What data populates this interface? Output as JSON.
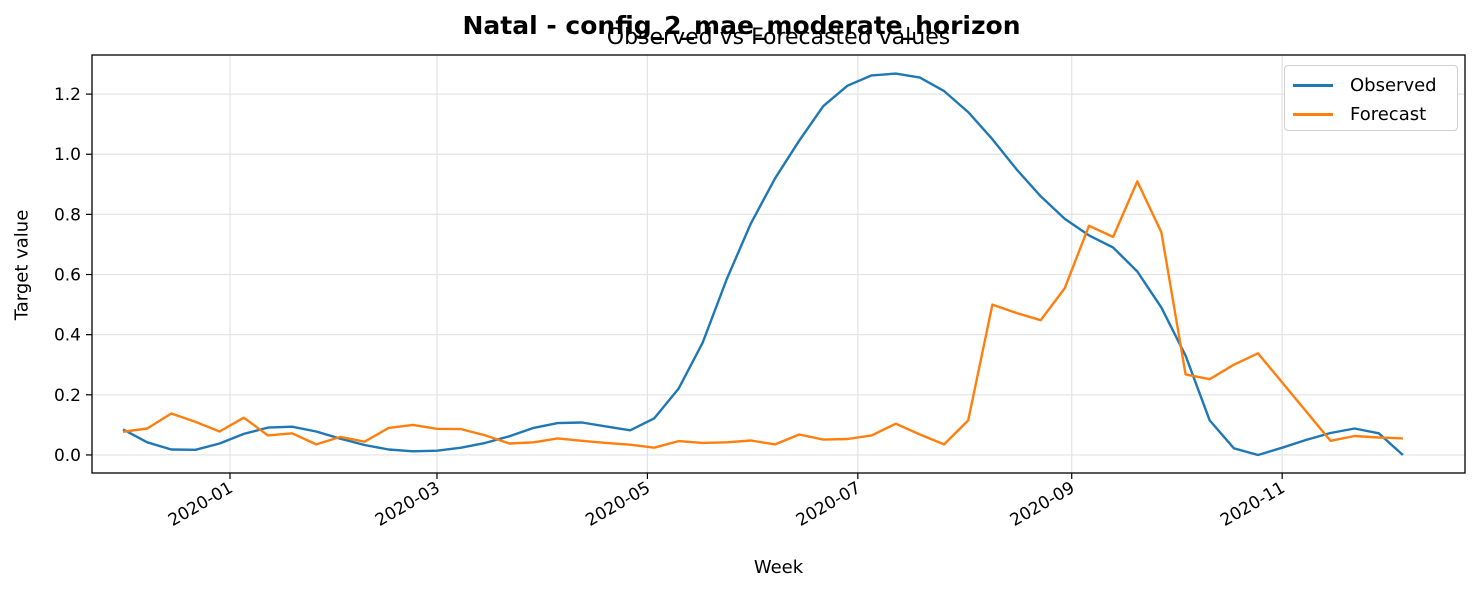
{
  "chart_data": {
    "type": "line",
    "title": "Natal - config_2_mae_moderate_horizon",
    "subtitle": "Observed vs Forecasted values",
    "xlabel": "Week",
    "ylabel": "Target value",
    "ylim": [
      -0.06,
      1.33
    ],
    "yticks": [
      0.0,
      0.2,
      0.4,
      0.6,
      0.8,
      1.0,
      1.2
    ],
    "ytick_labels": [
      "0.0",
      "0.2",
      "0.4",
      "0.6",
      "0.8",
      "1.0",
      "1.2"
    ],
    "xlim": [
      "2019-11-22",
      "2020-12-24"
    ],
    "xticks": [
      "2020-01-01",
      "2020-03-01",
      "2020-05-01",
      "2020-07-01",
      "2020-09-01",
      "2020-11-01"
    ],
    "xtick_labels": [
      "2020-01",
      "2020-03",
      "2020-05",
      "2020-07",
      "2020-09",
      "2020-11"
    ],
    "grid": true,
    "legend_position": "upper right",
    "series": [
      {
        "name": "Observed",
        "color": "#1f77b4",
        "x": [
          "2019-12-01",
          "2019-12-08",
          "2019-12-15",
          "2019-12-22",
          "2019-12-29",
          "2020-01-05",
          "2020-01-12",
          "2020-01-19",
          "2020-01-26",
          "2020-02-02",
          "2020-02-09",
          "2020-02-16",
          "2020-02-23",
          "2020-03-01",
          "2020-03-08",
          "2020-03-15",
          "2020-03-22",
          "2020-03-29",
          "2020-04-05",
          "2020-04-12",
          "2020-04-19",
          "2020-04-26",
          "2020-05-03",
          "2020-05-10",
          "2020-05-17",
          "2020-05-24",
          "2020-05-31",
          "2020-06-07",
          "2020-06-14",
          "2020-06-21",
          "2020-06-28",
          "2020-07-05",
          "2020-07-12",
          "2020-07-19",
          "2020-07-26",
          "2020-08-02",
          "2020-08-09",
          "2020-08-16",
          "2020-08-23",
          "2020-08-30",
          "2020-09-06",
          "2020-09-13",
          "2020-09-20",
          "2020-09-27",
          "2020-10-04",
          "2020-10-11",
          "2020-10-18",
          "2020-10-25",
          "2020-11-01",
          "2020-11-08",
          "2020-11-15",
          "2020-11-22",
          "2020-11-29",
          "2020-12-06"
        ],
        "y": [
          0.085,
          0.042,
          0.018,
          0.017,
          0.038,
          0.07,
          0.091,
          0.094,
          0.078,
          0.054,
          0.033,
          0.018,
          0.012,
          0.014,
          0.024,
          0.04,
          0.062,
          0.09,
          0.106,
          0.108,
          0.095,
          0.082,
          0.122,
          0.22,
          0.373,
          0.585,
          0.77,
          0.92,
          1.045,
          1.16,
          1.228,
          1.262,
          1.268,
          1.255,
          1.21,
          1.14,
          1.05,
          0.95,
          0.86,
          0.785,
          0.73,
          0.69,
          0.61,
          0.49,
          0.33,
          0.115,
          0.022,
          0.0,
          0.024,
          0.05,
          0.073,
          0.088,
          0.072,
          0.0
        ]
      },
      {
        "name": "Forecast",
        "color": "#ff7f0e",
        "x": [
          "2019-12-01",
          "2019-12-08",
          "2019-12-15",
          "2019-12-22",
          "2019-12-29",
          "2020-01-05",
          "2020-01-12",
          "2020-01-19",
          "2020-01-26",
          "2020-02-02",
          "2020-02-09",
          "2020-02-16",
          "2020-02-23",
          "2020-03-01",
          "2020-03-08",
          "2020-03-15",
          "2020-03-22",
          "2020-03-29",
          "2020-04-05",
          "2020-04-12",
          "2020-04-19",
          "2020-04-26",
          "2020-05-03",
          "2020-05-10",
          "2020-05-17",
          "2020-05-24",
          "2020-05-31",
          "2020-06-07",
          "2020-06-14",
          "2020-06-21",
          "2020-06-28",
          "2020-07-05",
          "2020-07-12",
          "2020-07-19",
          "2020-07-26",
          "2020-08-02",
          "2020-08-09",
          "2020-08-16",
          "2020-08-23",
          "2020-08-30",
          "2020-09-06",
          "2020-09-13",
          "2020-09-20",
          "2020-09-27",
          "2020-10-04",
          "2020-10-11",
          "2020-10-18",
          "2020-10-25",
          "2020-11-15",
          "2020-11-22",
          "2020-11-29",
          "2020-12-06"
        ],
        "y": [
          0.077,
          0.088,
          0.138,
          0.11,
          0.078,
          0.124,
          0.065,
          0.072,
          0.035,
          0.06,
          0.044,
          0.09,
          0.1,
          0.087,
          0.086,
          0.065,
          0.038,
          0.042,
          0.055,
          0.047,
          0.04,
          0.034,
          0.024,
          0.046,
          0.04,
          0.042,
          0.048,
          0.035,
          0.068,
          0.051,
          0.053,
          0.065,
          0.104,
          0.068,
          0.035,
          0.115,
          0.5,
          0.472,
          0.448,
          0.555,
          0.762,
          0.725,
          0.91,
          0.74,
          0.268,
          0.252,
          0.3,
          0.338,
          0.047,
          0.063,
          0.058,
          0.055
        ]
      }
    ]
  }
}
